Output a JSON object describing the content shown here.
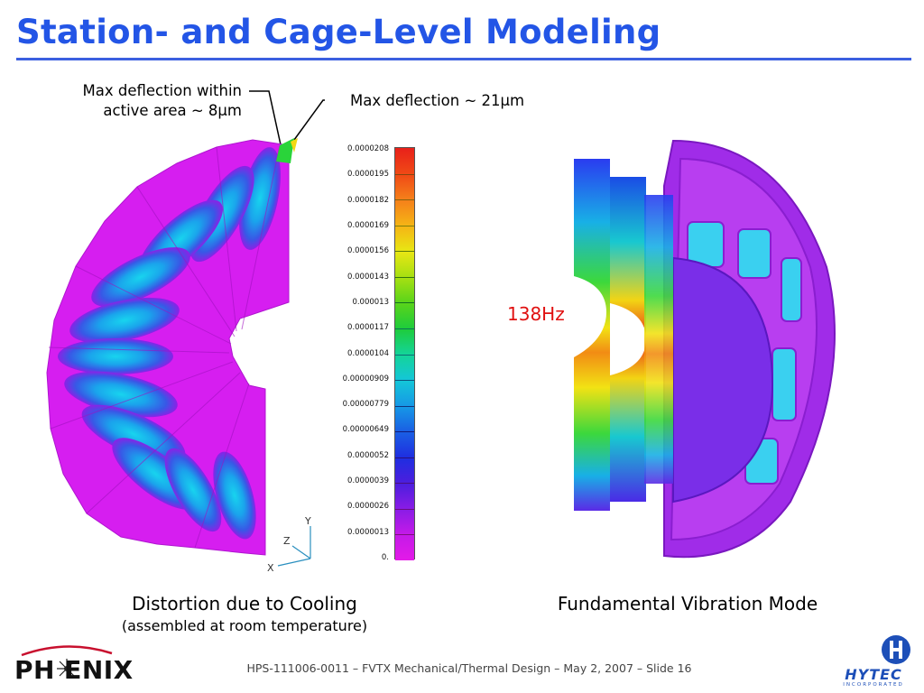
{
  "header": {
    "title": "Station- and Cage-Level Modeling"
  },
  "annotations": {
    "left_line1": "Max deflection within",
    "left_line2": "active area ~ 8μm",
    "right": "Max deflection ~ 21μm",
    "frequency": "138Hz"
  },
  "legend": {
    "ticks": [
      "0.0000208",
      "0.0000195",
      "0.0000182",
      "0.0000169",
      "0.0000156",
      "0.0000143",
      "0.000013",
      "0.0000117",
      "0.0000104",
      "0.00000909",
      "0.00000779",
      "0.00000649",
      "0.0000052",
      "0.0000039",
      "0.0000026",
      "0.0000013",
      "0."
    ],
    "colors": [
      "#e8201a",
      "#f04a16",
      "#f5801a",
      "#f5b515",
      "#e8e614",
      "#a6e012",
      "#5ad41a",
      "#1ecc3c",
      "#14d49a",
      "#14c6d8",
      "#1698e6",
      "#1a5fe4",
      "#1f2ee0",
      "#4c1ede",
      "#8a1ce6",
      "#c41ae8",
      "#e41ae8"
    ]
  },
  "axes_triad": {
    "y": "Y",
    "z": "Z",
    "x": "X"
  },
  "captions": {
    "left_main": "Distortion due to Cooling",
    "left_sub": "(assembled at room temperature)",
    "right_main": "Fundamental Vibration Mode"
  },
  "footer": {
    "text": "HPS-111006-0011 – FVTX Mechanical/Thermal Design – May 2, 2007 – Slide 16"
  },
  "logos": {
    "left": "PH   ENIX",
    "right": "HYTEC",
    "right_sub": "INCORPORATED"
  }
}
